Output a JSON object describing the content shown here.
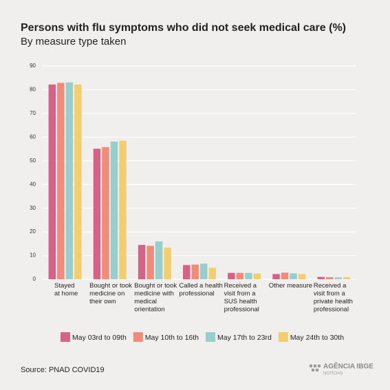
{
  "chart_data": {
    "type": "bar",
    "title": "Persons with flu symptoms who did not seek medical care (%)",
    "subtitle": "By measure type taken",
    "categories": [
      "Stayed\nat home",
      "Bought or took\nmedicine on\ntheir own",
      "Bought or took\nmedicine with\nmedical\norientation",
      "Called a health\nprofessional",
      "Received a\nvisit from a\nSUS health\nprofessional",
      "Other measure",
      "Received a\nvisit from a\nprivate health\nprofessional"
    ],
    "series": [
      {
        "name": "May 03rd to 09th",
        "color": "#d6628a",
        "values": [
          82.2,
          55.1,
          14.5,
          6.0,
          2.7,
          2.2,
          1.0
        ]
      },
      {
        "name": "May 10th to 16th",
        "color": "#ef8c7c",
        "values": [
          82.9,
          55.8,
          14.1,
          6.2,
          2.7,
          2.8,
          0.9
        ]
      },
      {
        "name": "May 17th to 23rd",
        "color": "#98cfcd",
        "values": [
          83.1,
          58.1,
          16.0,
          6.6,
          2.7,
          2.5,
          0.8
        ]
      },
      {
        "name": "May 24th to 30th",
        "color": "#f2cf6e",
        "values": [
          82.2,
          58.5,
          13.4,
          4.9,
          2.4,
          2.2,
          0.9
        ]
      }
    ],
    "ylim": [
      0,
      90
    ],
    "yticks": [
      0,
      10,
      20,
      30,
      40,
      50,
      60,
      70,
      80,
      90
    ],
    "grid": true,
    "source": "Source: PNAD COVID19",
    "logo": [
      "AGÊNCIA IBGE",
      "NOTÍCIAS"
    ]
  }
}
